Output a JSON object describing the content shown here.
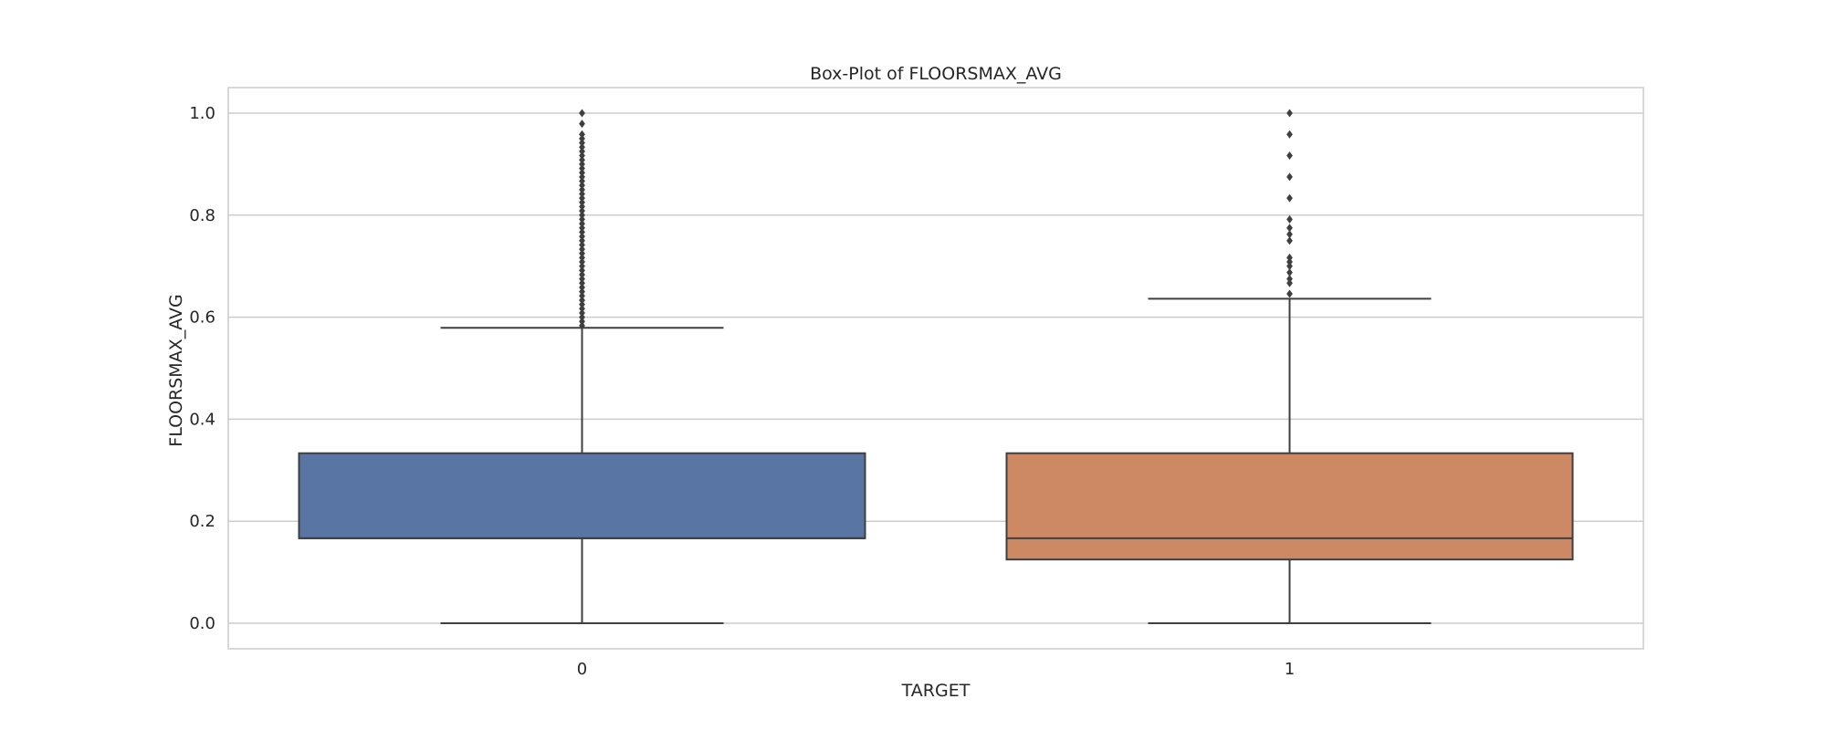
{
  "chart_data": {
    "type": "box",
    "title": "Box-Plot of FLOORSMAX_AVG",
    "xlabel": "TARGET",
    "ylabel": "FLOORSMAX_AVG",
    "ylim": [
      -0.05,
      1.05
    ],
    "yticks": [
      0.0,
      0.2,
      0.4,
      0.6,
      0.8,
      1.0
    ],
    "ytick_labels": [
      "0.0",
      "0.2",
      "0.4",
      "0.6",
      "0.8",
      "1.0"
    ],
    "grid": true,
    "categories": [
      "0",
      "1"
    ],
    "series": [
      {
        "category": "0",
        "color": "#5975a4",
        "whisker_low": 0.0,
        "q1": 0.1667,
        "median": 0.1667,
        "q3": 0.3333,
        "whisker_high": 0.5792,
        "outliers": [
          0.5833,
          0.5917,
          0.6,
          0.6083,
          0.6167,
          0.625,
          0.6333,
          0.6417,
          0.65,
          0.6583,
          0.6667,
          0.675,
          0.6833,
          0.6917,
          0.7,
          0.7083,
          0.7167,
          0.725,
          0.7333,
          0.7417,
          0.75,
          0.7583,
          0.7667,
          0.775,
          0.7833,
          0.7917,
          0.8,
          0.8083,
          0.8167,
          0.825,
          0.8333,
          0.8417,
          0.85,
          0.8583,
          0.8667,
          0.875,
          0.8833,
          0.8917,
          0.9,
          0.9083,
          0.9167,
          0.925,
          0.9333,
          0.9417,
          0.95,
          0.9583,
          0.9792,
          1.0
        ]
      },
      {
        "category": "1",
        "color": "#cc8963",
        "whisker_low": 0.0,
        "q1": 0.125,
        "median": 0.1667,
        "q3": 0.3333,
        "whisker_high": 0.6362,
        "outliers": [
          0.6458,
          0.6667,
          0.675,
          0.6875,
          0.7,
          0.7083,
          0.7167,
          0.75,
          0.7625,
          0.775,
          0.7917,
          0.8333,
          0.875,
          0.9167,
          0.9583,
          1.0
        ]
      }
    ]
  }
}
